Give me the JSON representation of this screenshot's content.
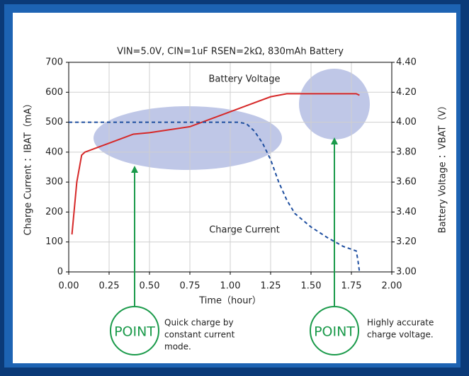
{
  "chart_data": {
    "type": "line",
    "title": "VIN=5.0V, CIN=1uF    RSEN=2kΩ, 830mAh Battery",
    "x_label": "Time（hour）",
    "y_label": "Charge Current ：IBAT（mA）",
    "y2_label": "Battery Voltage ：VBAT（V）",
    "xlim": [
      0,
      2
    ],
    "xticks": [
      {
        "value": 0,
        "label": "0.00"
      },
      {
        "value": 0.25,
        "label": "0.25"
      },
      {
        "value": 0.5,
        "label": "0.50"
      },
      {
        "value": 0.75,
        "label": "0.75"
      },
      {
        "value": 1,
        "label": "1.00"
      },
      {
        "value": 1.25,
        "label": "1.25"
      },
      {
        "value": 1.5,
        "label": "1.50"
      },
      {
        "value": 1.75,
        "label": "1.75"
      },
      {
        "value": 2,
        "label": "2.00"
      }
    ],
    "ylim": [
      0,
      700
    ],
    "yticks": [
      0,
      100,
      200,
      300,
      400,
      500,
      600,
      700
    ],
    "y2lim": [
      3,
      4.4
    ],
    "y2ticks": [
      {
        "value": 3,
        "label": "3.00"
      },
      {
        "value": 3.2,
        "label": "3.20"
      },
      {
        "value": 3.4,
        "label": "3.40"
      },
      {
        "value": 3.6,
        "label": "3.60"
      },
      {
        "value": 3.8,
        "label": "3.80"
      },
      {
        "value": 4,
        "label": "4.00"
      },
      {
        "value": 4.2,
        "label": "4.20"
      },
      {
        "value": 4.4,
        "label": "4.40"
      }
    ],
    "grid": true,
    "series": [
      {
        "name": "Battery Voltage",
        "color": "#d62828",
        "axis": "y2",
        "dash": false,
        "x": [
          0.02,
          0.05,
          0.08,
          0.1,
          0.25,
          0.4,
          0.5,
          0.75,
          1.0,
          1.1,
          1.25,
          1.35,
          1.5,
          1.78,
          1.8
        ],
        "values": [
          3.25,
          3.6,
          3.78,
          3.8,
          3.86,
          3.92,
          3.93,
          3.97,
          4.07,
          4.11,
          4.17,
          4.19,
          4.19,
          4.19,
          4.18
        ]
      },
      {
        "name": "Charge Current",
        "color": "#1f4fa0",
        "axis": "y",
        "dash": true,
        "x": [
          0,
          1.05,
          1.1,
          1.15,
          1.2,
          1.25,
          1.3,
          1.35,
          1.4,
          1.5,
          1.6,
          1.7,
          1.78,
          1.79,
          1.8
        ],
        "values": [
          500,
          500,
          495,
          470,
          430,
          375,
          300,
          240,
          195,
          150,
          115,
          85,
          70,
          40,
          0
        ]
      }
    ],
    "annotations": [
      {
        "label": "POINT",
        "text": [
          "Quick charge by",
          "constant current",
          "mode."
        ]
      },
      {
        "label": "POINT",
        "text": [
          "Highly accurate",
          "charge voltage."
        ]
      }
    ]
  }
}
